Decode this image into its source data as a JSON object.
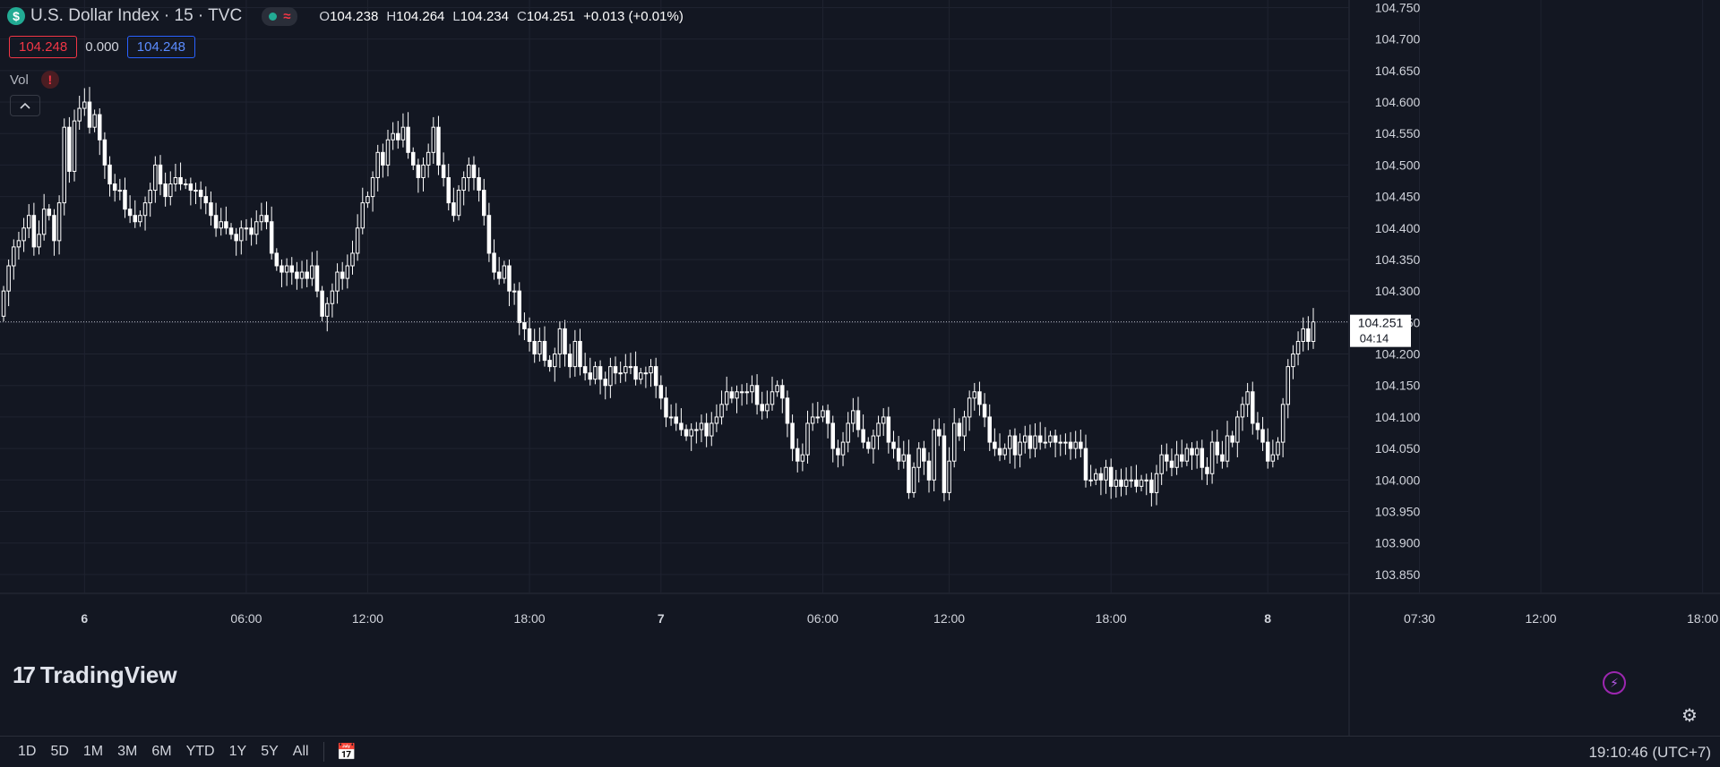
{
  "header": {
    "symbol_icon": "$",
    "title": "U.S. Dollar Index · 15 · TVC",
    "status_icon": "≈",
    "ohlc": [
      {
        "k": "O",
        "v": "104.238"
      },
      {
        "k": "H",
        "v": "104.264"
      },
      {
        "k": "L",
        "v": "104.234"
      },
      {
        "k": "C",
        "v": "104.251"
      }
    ],
    "change": "+0.013 (+0.01%)"
  },
  "quote": {
    "bid": "104.248",
    "spread": "0.000",
    "ask": "104.248"
  },
  "indicators": {
    "vol_label": "Vol",
    "vol_warning": "!"
  },
  "collapse_icon": "chevron-up-icon",
  "logo_text": "TradingView",
  "bottom": {
    "timeframes": [
      "1D",
      "5D",
      "1M",
      "3M",
      "6M",
      "YTD",
      "1Y",
      "5Y",
      "All"
    ],
    "clock": "19:10:46 (UTC+7)"
  },
  "colors": {
    "background": "#131722",
    "grid": "#1f2330",
    "candle": "#ffffff",
    "text": "#d1d4dc",
    "red": "#f23645",
    "blue": "#2962ff"
  },
  "chart_data": {
    "type": "candlestick",
    "title": "U.S. Dollar Index · 15 · TVC",
    "interval": "15",
    "y_ticks": [
      "103.850",
      "103.900",
      "103.950",
      "104.000",
      "104.050",
      "104.100",
      "104.150",
      "104.200",
      "104.250",
      "104.300",
      "104.350",
      "104.400",
      "104.450",
      "104.500",
      "104.550",
      "104.600",
      "104.650",
      "104.700",
      "104.750"
    ],
    "ylim": [
      103.82,
      104.762
    ],
    "x_ticks": [
      {
        "label": "6",
        "bold": true,
        "index": 16
      },
      {
        "label": "06:00",
        "index": 48
      },
      {
        "label": "12:00",
        "index": 72
      },
      {
        "label": "18:00",
        "index": 104
      },
      {
        "label": "7",
        "bold": true,
        "index": 130
      },
      {
        "label": "06:00",
        "index": 162
      },
      {
        "label": "12:00",
        "index": 187
      },
      {
        "label": "18:00",
        "index": 219
      },
      {
        "label": "8",
        "bold": true,
        "index": 250
      },
      {
        "label": "07:30",
        "index": 280
      },
      {
        "label": "12:00",
        "index": 304
      },
      {
        "label": "18:00",
        "index": 336
      }
    ],
    "last_price": "104.251",
    "countdown": "04:14",
    "close_series": [
      104.3,
      104.34,
      104.37,
      104.38,
      104.4,
      104.42,
      104.37,
      104.39,
      104.43,
      104.42,
      104.38,
      104.44,
      104.56,
      104.49,
      104.57,
      104.59,
      104.6,
      104.56,
      104.58,
      104.54,
      104.5,
      104.47,
      104.46,
      104.46,
      104.43,
      104.42,
      104.41,
      104.42,
      104.44,
      104.46,
      104.5,
      104.47,
      104.45,
      104.47,
      104.48,
      104.47,
      104.47,
      104.46,
      104.46,
      104.45,
      104.44,
      104.42,
      104.4,
      104.41,
      104.4,
      104.39,
      104.38,
      104.4,
      104.4,
      104.39,
      104.41,
      104.42,
      104.41,
      104.36,
      104.34,
      104.33,
      104.34,
      104.33,
      104.32,
      104.33,
      104.32,
      104.34,
      104.3,
      104.26,
      104.28,
      104.3,
      104.33,
      104.32,
      104.34,
      104.36,
      104.4,
      104.44,
      104.45,
      104.48,
      104.52,
      104.5,
      104.54,
      104.55,
      104.54,
      104.56,
      104.52,
      104.5,
      104.48,
      104.5,
      104.52,
      104.56,
      104.5,
      104.48,
      104.44,
      104.42,
      104.46,
      104.48,
      104.5,
      104.48,
      104.46,
      104.42,
      104.36,
      104.33,
      104.32,
      104.34,
      104.3,
      104.3,
      104.25,
      104.24,
      104.22,
      104.2,
      104.22,
      104.19,
      104.18,
      104.2,
      104.24,
      104.2,
      104.18,
      104.22,
      104.18,
      104.17,
      104.16,
      104.18,
      104.16,
      104.15,
      104.18,
      104.17,
      104.17,
      104.18,
      104.18,
      104.16,
      104.17,
      104.17,
      104.18,
      104.15,
      104.13,
      104.1,
      104.1,
      104.09,
      104.08,
      104.07,
      104.08,
      104.08,
      104.09,
      104.07,
      104.09,
      104.1,
      104.12,
      104.14,
      104.13,
      104.14,
      104.14,
      104.14,
      104.15,
      104.12,
      104.11,
      104.12,
      104.14,
      104.15,
      104.13,
      104.09,
      104.05,
      104.03,
      104.04,
      104.09,
      104.1,
      104.1,
      104.11,
      104.09,
      104.05,
      104.04,
      104.06,
      104.09,
      104.11,
      104.08,
      104.06,
      104.05,
      104.07,
      104.09,
      104.1,
      104.06,
      104.05,
      104.03,
      104.04,
      103.98,
      104.02,
      104.05,
      104.03,
      104.0,
      104.08,
      104.07,
      103.98,
      104.03,
      104.09,
      104.07,
      104.1,
      104.13,
      104.14,
      104.12,
      104.1,
      104.06,
      104.05,
      104.04,
      104.05,
      104.07,
      104.04,
      104.06,
      104.07,
      104.05,
      104.07,
      104.06,
      104.06,
      104.07,
      104.06,
      104.06,
      104.06,
      104.05,
      104.06,
      104.05,
      104.0,
      104.0,
      104.01,
      104.0,
      104.02,
      103.99,
      104.0,
      103.99,
      104.0,
      104.0,
      103.99,
      104.0,
      104.0,
      103.98,
      104.01,
      104.04,
      104.03,
      104.02,
      104.04,
      104.03,
      104.05,
      104.04,
      104.05,
      104.02,
      104.01,
      104.06,
      104.04,
      104.03,
      104.07,
      104.06,
      104.1,
      104.12,
      104.14,
      104.09,
      104.08,
      104.06,
      104.03,
      104.04,
      104.06,
      104.12,
      104.18,
      104.2,
      104.22,
      104.24,
      104.22,
      104.251
    ]
  }
}
